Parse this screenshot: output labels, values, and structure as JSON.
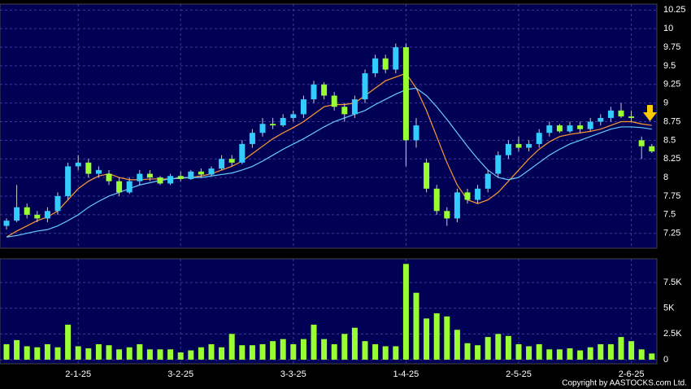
{
  "chart_data": {
    "type": "candlestick",
    "copyright": "Copyright by AASTOCKS.com Ltd.",
    "categories": [
      null,
      null,
      null,
      null,
      null,
      null,
      null,
      "2-1-25",
      null,
      null,
      null,
      null,
      null,
      null,
      null,
      null,
      null,
      "3-2-25",
      null,
      null,
      null,
      null,
      null,
      null,
      null,
      null,
      null,
      null,
      "3-3-25",
      null,
      null,
      null,
      null,
      null,
      null,
      null,
      null,
      null,
      null,
      "1-4-25",
      null,
      null,
      null,
      null,
      null,
      null,
      null,
      null,
      null,
      null,
      "2-5-25",
      null,
      null,
      null,
      null,
      null,
      null,
      null,
      null,
      null,
      null,
      "2-6-25",
      null,
      null
    ],
    "open": [
      7.35,
      7.42,
      7.6,
      7.5,
      7.45,
      7.55,
      7.75,
      8.15,
      8.2,
      8.05,
      8.05,
      7.95,
      7.8,
      7.95,
      8.05,
      8.0,
      7.92,
      8.02,
      7.98,
      8.08,
      8.04,
      8.12,
      8.25,
      8.2,
      8.45,
      8.6,
      8.72,
      8.7,
      8.8,
      8.85,
      9.05,
      9.25,
      9.1,
      8.95,
      8.85,
      9.05,
      9.4,
      9.6,
      9.45,
      9.75,
      8.5,
      8.2,
      7.85,
      7.55,
      7.45,
      7.8,
      7.7,
      7.85,
      8.05,
      8.3,
      8.45,
      8.4,
      8.45,
      8.6,
      8.7,
      8.62,
      8.7,
      8.65,
      8.75,
      8.8,
      8.9,
      8.82,
      8.5,
      8.42
    ],
    "high": [
      7.45,
      7.9,
      7.65,
      7.55,
      7.6,
      7.8,
      8.2,
      8.3,
      8.25,
      8.15,
      8.1,
      8.0,
      8.0,
      8.1,
      8.1,
      8.02,
      8.05,
      8.08,
      8.1,
      8.12,
      8.15,
      8.3,
      8.3,
      8.5,
      8.65,
      8.8,
      8.8,
      8.85,
      8.9,
      9.1,
      9.3,
      9.28,
      9.15,
      9.0,
      9.1,
      9.45,
      9.65,
      9.65,
      9.8,
      9.8,
      8.8,
      8.25,
      7.9,
      7.6,
      7.85,
      7.85,
      7.9,
      8.1,
      8.35,
      8.5,
      8.55,
      8.5,
      8.65,
      8.75,
      8.72,
      8.75,
      8.75,
      8.8,
      8.85,
      8.95,
      9.0,
      8.9,
      8.55,
      8.45
    ],
    "low": [
      7.3,
      7.4,
      7.45,
      7.4,
      7.4,
      7.5,
      7.7,
      8.1,
      8.0,
      8.0,
      7.9,
      7.75,
      7.78,
      7.9,
      7.95,
      7.9,
      7.9,
      7.95,
      7.97,
      8.0,
      8.02,
      8.1,
      8.15,
      8.18,
      8.4,
      8.55,
      8.65,
      8.68,
      8.75,
      8.8,
      9.0,
      9.05,
      8.9,
      8.75,
      8.8,
      9.0,
      9.35,
      9.4,
      9.4,
      8.15,
      8.4,
      7.8,
      7.5,
      7.35,
      7.4,
      7.65,
      7.65,
      7.8,
      8.0,
      8.25,
      8.35,
      8.35,
      8.4,
      8.55,
      8.6,
      8.6,
      8.6,
      8.62,
      8.7,
      8.75,
      8.8,
      8.75,
      8.25,
      8.33
    ],
    "close": [
      7.42,
      7.6,
      7.5,
      7.45,
      7.55,
      7.75,
      8.15,
      8.2,
      8.05,
      8.1,
      7.95,
      7.8,
      7.95,
      8.05,
      8.0,
      7.92,
      8.02,
      7.98,
      8.08,
      8.04,
      8.12,
      8.25,
      8.2,
      8.45,
      8.6,
      8.72,
      8.7,
      8.8,
      8.85,
      9.05,
      9.25,
      9.1,
      8.95,
      8.85,
      9.05,
      9.4,
      9.6,
      9.45,
      9.75,
      8.5,
      8.7,
      7.85,
      7.55,
      7.45,
      7.8,
      7.7,
      7.85,
      8.05,
      8.3,
      8.45,
      8.4,
      8.45,
      8.6,
      8.7,
      8.62,
      8.7,
      8.65,
      8.75,
      8.8,
      8.9,
      8.82,
      8.8,
      8.42,
      8.35
    ],
    "up_color": "#33ccff",
    "down_color": "#99ff33",
    "lines": [
      {
        "color": "#ff9933",
        "values": [
          7.2,
          7.28,
          7.35,
          7.42,
          7.47,
          7.55,
          7.7,
          7.85,
          7.95,
          8.02,
          8.05,
          8.0,
          7.97,
          7.97,
          7.98,
          7.98,
          7.98,
          7.99,
          8.0,
          8.02,
          8.05,
          8.1,
          8.15,
          8.22,
          8.32,
          8.42,
          8.52,
          8.6,
          8.67,
          8.75,
          8.85,
          8.95,
          8.98,
          8.98,
          9.0,
          9.1,
          9.2,
          9.3,
          9.35,
          9.4,
          9.2,
          8.9,
          8.55,
          8.2,
          7.9,
          7.7,
          7.65,
          7.7,
          7.8,
          7.95,
          8.1,
          8.25,
          8.38,
          8.48,
          8.55,
          8.58,
          8.6,
          8.62,
          8.65,
          8.7,
          8.75,
          8.75,
          8.72,
          8.7
        ]
      },
      {
        "color": "#66ccff",
        "values": [
          7.2,
          7.22,
          7.25,
          7.28,
          7.3,
          7.35,
          7.42,
          7.5,
          7.6,
          7.68,
          7.75,
          7.8,
          7.85,
          7.9,
          7.93,
          7.96,
          7.98,
          8.0,
          8.0,
          8.0,
          8.02,
          8.04,
          8.06,
          8.1,
          8.15,
          8.22,
          8.3,
          8.38,
          8.45,
          8.52,
          8.6,
          8.68,
          8.75,
          8.8,
          8.85,
          8.9,
          8.98,
          9.05,
          9.12,
          9.18,
          9.2,
          9.1,
          8.95,
          8.78,
          8.6,
          8.42,
          8.25,
          8.1,
          8.0,
          7.97,
          8.0,
          8.1,
          8.2,
          8.3,
          8.38,
          8.45,
          8.5,
          8.55,
          8.6,
          8.65,
          8.68,
          8.68,
          8.67,
          8.65
        ]
      }
    ],
    "ylim": [
      7.05,
      10.33
    ],
    "yticks": [
      7.25,
      7.5,
      7.75,
      8,
      8.25,
      8.5,
      8.75,
      9,
      9.25,
      9.5,
      9.75,
      10,
      10.25
    ],
    "grid": true,
    "volume": {
      "color": "#99ff33",
      "values": [
        1500,
        1900,
        1300,
        1200,
        1500,
        1200,
        3400,
        1300,
        1100,
        1500,
        1400,
        1000,
        1200,
        1500,
        1000,
        1000,
        1000,
        700,
        900,
        1200,
        1500,
        1200,
        2500,
        1400,
        1400,
        1500,
        1800,
        2000,
        1500,
        2000,
        3400,
        2000,
        1500,
        2500,
        3100,
        1800,
        1500,
        1300,
        1300,
        9300,
        6500,
        4000,
        4500,
        4200,
        2900,
        1600,
        1400,
        2200,
        2500,
        2300,
        1500,
        1300,
        1500,
        1000,
        1000,
        1100,
        900,
        1200,
        1500,
        1500,
        2200,
        1800,
        1000,
        600
      ],
      "ylim": [
        -400,
        9800
      ],
      "yticks": [
        0,
        {
          "value": 2500,
          "label": "2.5K"
        },
        {
          "value": 5000,
          "label": "5K"
        },
        {
          "value": 7500,
          "label": "7.5K"
        }
      ]
    }
  }
}
